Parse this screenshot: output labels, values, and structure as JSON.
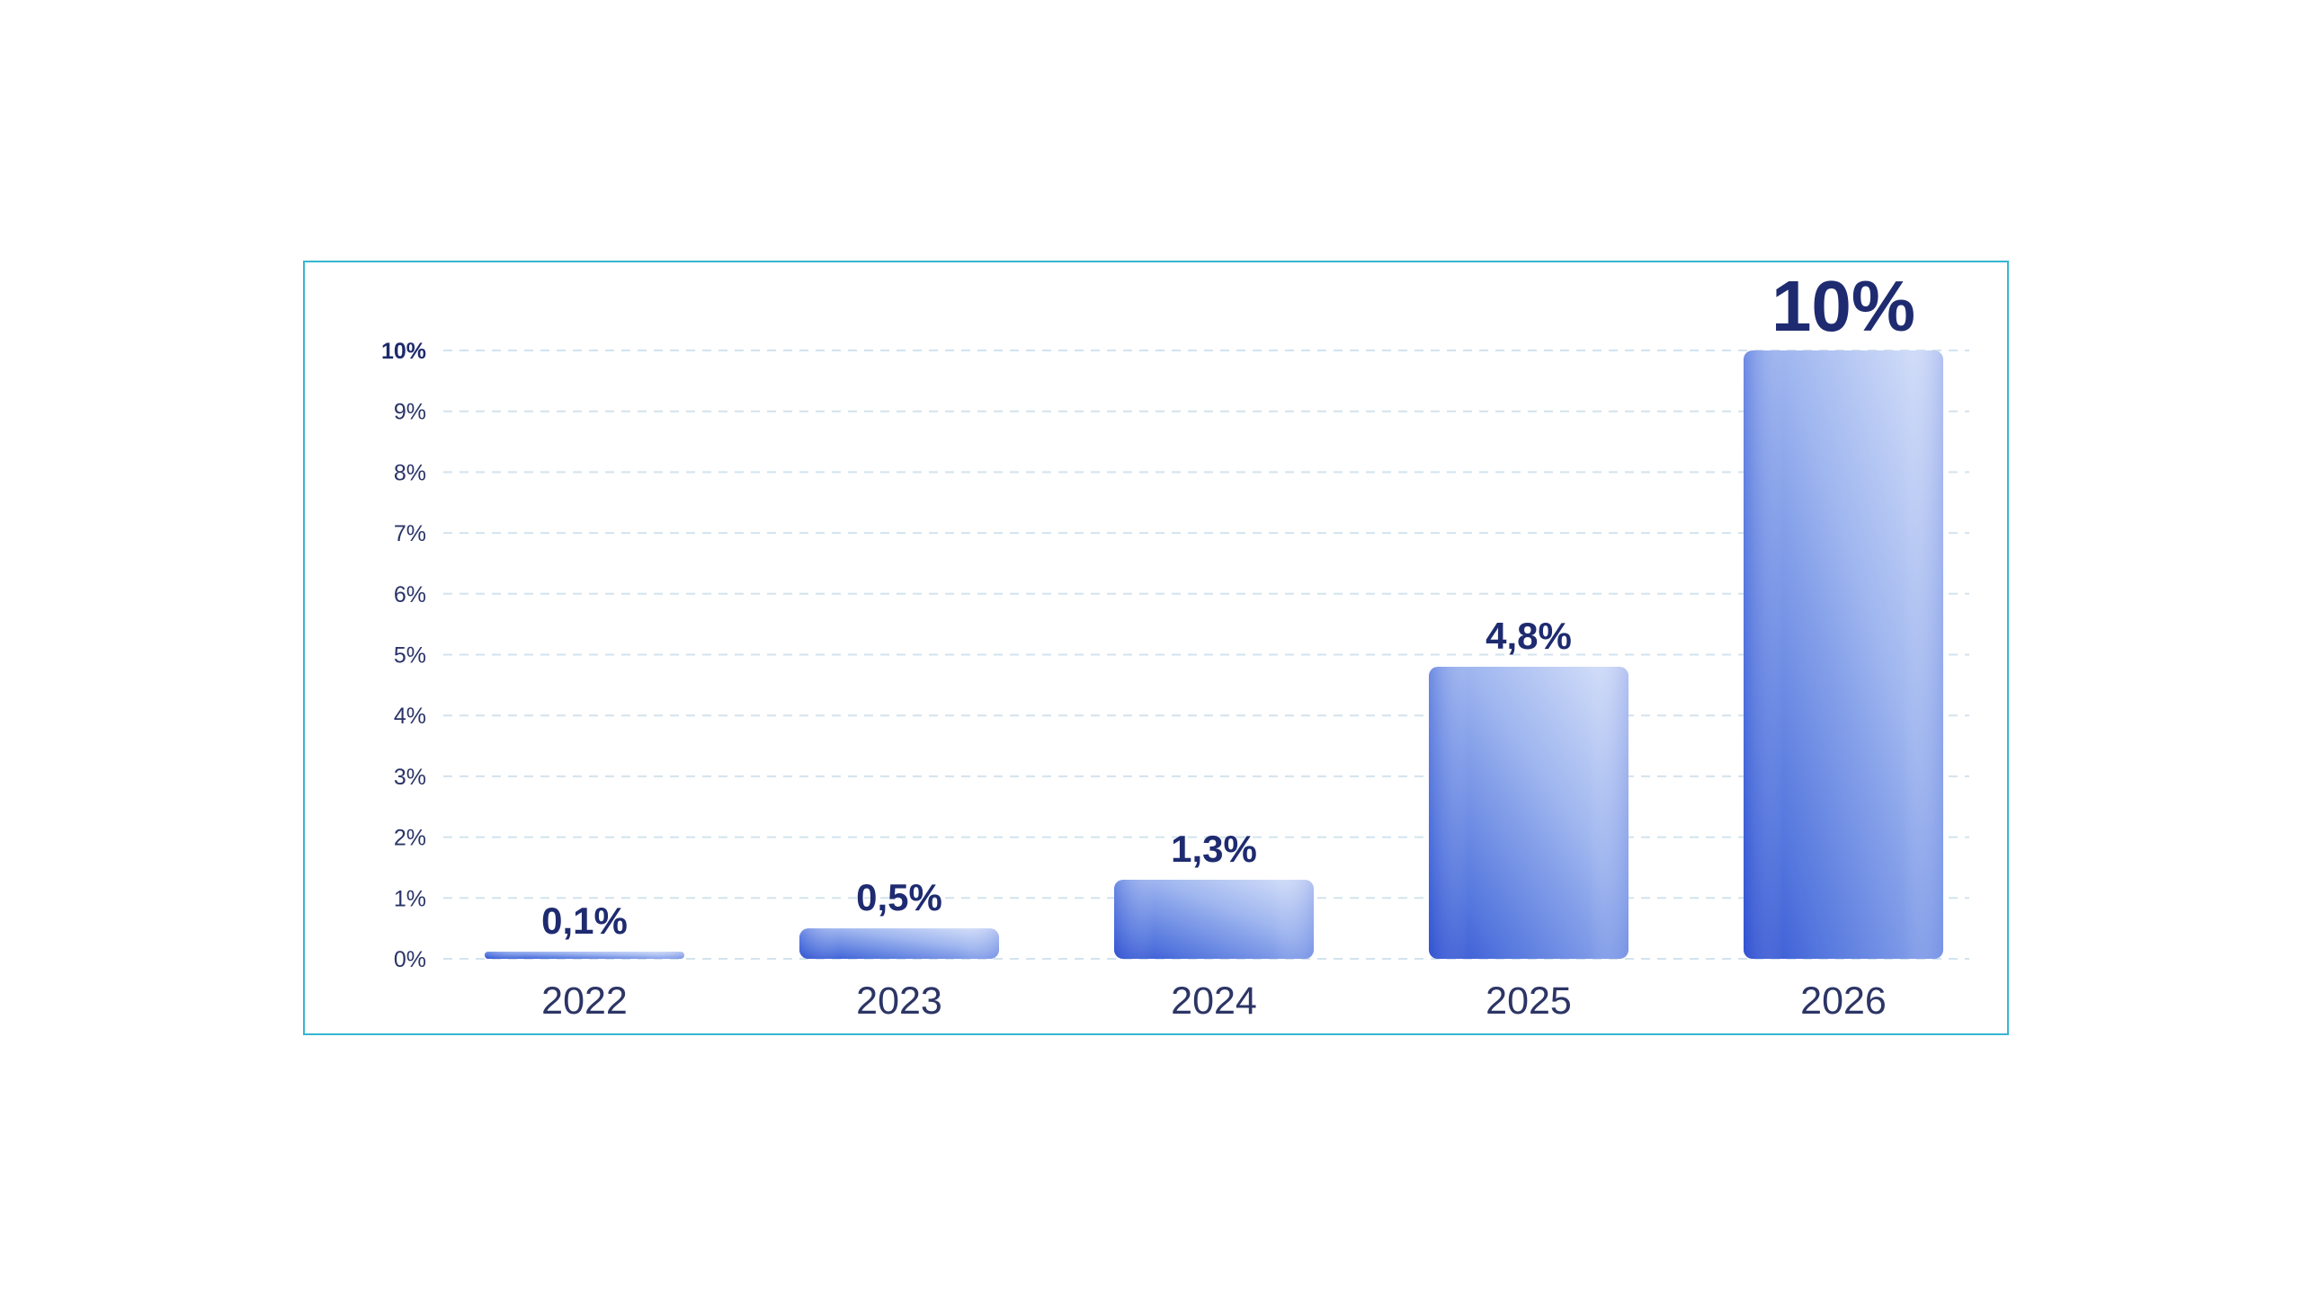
{
  "chart_data": {
    "type": "bar",
    "categories": [
      "2022",
      "2023",
      "2024",
      "2025",
      "2026"
    ],
    "values": [
      0.1,
      0.5,
      1.3,
      4.8,
      10
    ],
    "value_labels": [
      "0,1%",
      "0,5%",
      "1,3%",
      "4,8%",
      "10%"
    ],
    "ylim": [
      0,
      10
    ],
    "yticks": [
      0,
      1,
      2,
      3,
      4,
      5,
      6,
      7,
      8,
      9,
      10
    ],
    "ytick_labels": [
      "0%",
      "1%",
      "2%",
      "3%",
      "4%",
      "5%",
      "6%",
      "7%",
      "8%",
      "9%",
      "10%"
    ],
    "title": "",
    "xlabel": "",
    "ylabel": "",
    "grid": true,
    "grid_style": "dashed",
    "legend": "none",
    "colors": {
      "bar_light": "#c9d6f6",
      "bar_mid": "#7e9be8",
      "bar_dark": "#2f4fd0",
      "value_text": "#1e2b70",
      "axis_text": "#2a3467",
      "frame_border": "#35b6d3",
      "grid": "#d3e3ee"
    }
  }
}
